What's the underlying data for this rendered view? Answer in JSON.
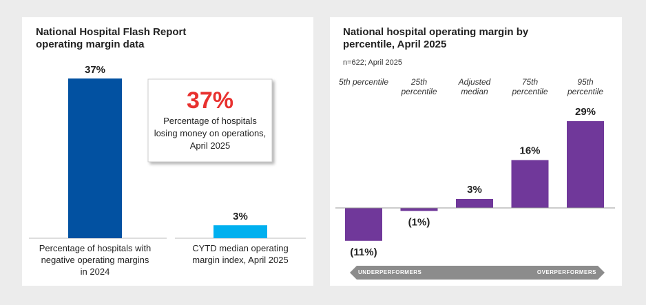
{
  "chart_data": [
    {
      "type": "bar",
      "title": "National Hospital Flash Report operating margin data",
      "categories": [
        "Percentage of hospitals with negative operating margins in 2024",
        "CYTD median operating margin index, April 2025"
      ],
      "values": [
        37,
        3
      ],
      "value_labels": [
        "37%",
        "3%"
      ],
      "colors": [
        "#0251a1",
        "#00b0ef"
      ],
      "callout": {
        "headline": "37%",
        "text": "Percentage of hospitals losing money on operations, April 2025"
      }
    },
    {
      "type": "bar",
      "title": "National hospital operating margin by percentile, April 2025",
      "subtitle": "n=622; April 2025",
      "categories": [
        "5th percentile",
        "25th percentile",
        "Adjusted median",
        "75th percentile",
        "95th percentile"
      ],
      "values": [
        -11,
        -1,
        3,
        16,
        29
      ],
      "value_labels": [
        "(11%)",
        "(1%)",
        "3%",
        "16%",
        "29%"
      ],
      "color": "#70389a",
      "arrow_labels": [
        "UNDERPERFORMERS",
        "OVERPERFORMERS"
      ]
    }
  ]
}
